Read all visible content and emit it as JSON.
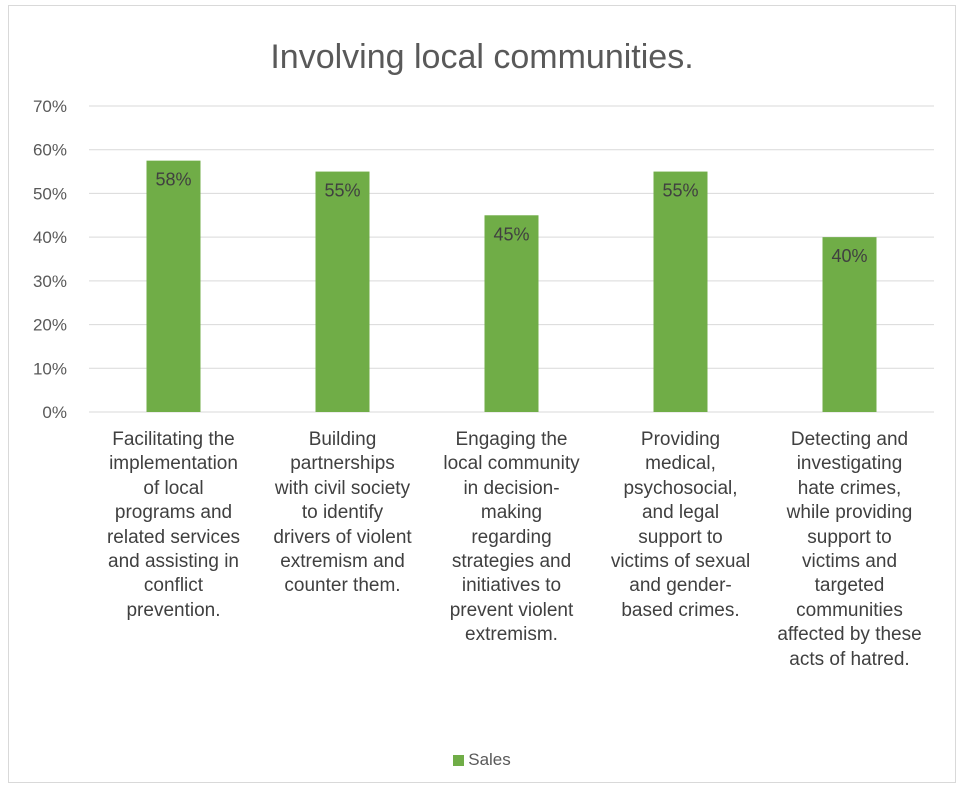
{
  "chart_data": {
    "type": "bar",
    "title": "Involving local communities.",
    "categories": [
      "Facilitating the implementation of local programs and related services and assisting in conflict prevention.",
      "Building partnerships with civil society to identify drivers of violent extremism and counter them.",
      "Engaging the local community in decision-making regarding strategies and initiatives to prevent violent extremism.",
      "Providing medical, psychosocial, and legal support to victims of sexual and gender-based crimes.",
      "Detecting and investigating hate crimes, while providing support to victims and targeted communities affected by these acts of hatred."
    ],
    "category_lines": [
      [
        "Facilitating the",
        "implementation",
        "of local",
        "programs and",
        "related services",
        "and assisting in",
        "conflict",
        "prevention."
      ],
      [
        "Building",
        "partnerships",
        "with civil society",
        "to identify",
        "drivers of violent",
        "extremism and",
        "counter them."
      ],
      [
        "Engaging the",
        "local community",
        "in decision-",
        "making",
        "regarding",
        "strategies and",
        "initiatives to",
        "prevent violent",
        "extremism."
      ],
      [
        "Providing",
        "medical,",
        "psychosocial,",
        "and legal",
        "support to",
        "victims of sexual",
        "and gender-",
        "based crimes."
      ],
      [
        "Detecting and",
        "investigating",
        "hate crimes,",
        "while providing",
        "support to",
        "victims and",
        "targeted",
        "communities",
        "affected by these",
        "acts of hatred."
      ]
    ],
    "series": [
      {
        "name": "Sales",
        "values": [
          57.5,
          55,
          45,
          55,
          40
        ],
        "color": "#70ad47"
      }
    ],
    "data_labels": [
      "58%",
      "55%",
      "45%",
      "55%",
      "40%"
    ],
    "ylim": [
      0,
      70
    ],
    "yticks": [
      0,
      10,
      20,
      30,
      40,
      50,
      60,
      70
    ],
    "ytick_labels": [
      "0%",
      "10%",
      "20%",
      "30%",
      "40%",
      "50%",
      "60%",
      "70%"
    ],
    "grid": true,
    "legend_position": "bottom"
  },
  "page": {
    "top_fragment": "p"
  }
}
